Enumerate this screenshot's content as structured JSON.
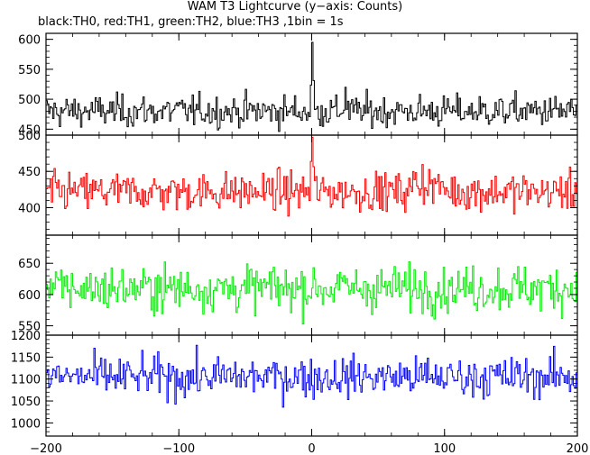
{
  "title": "WAM T3 Lightcurve (y−axis: Counts)",
  "subtitle": "black:TH0, red:TH1, green:TH2, blue:TH3 ,1bin = 1s",
  "chart_data": [
    {
      "type": "line",
      "series": [
        {
          "name": "TH0",
          "color": "#000000",
          "mean": 480,
          "sd": 22,
          "events": [
            {
              "x": 0,
              "add": 115
            },
            {
              "x": 25,
              "add": 40
            }
          ]
        }
      ],
      "xlim": [
        -200,
        200
      ],
      "ylim": [
        440,
        610
      ],
      "yticks": [
        450,
        500,
        550,
        600
      ]
    },
    {
      "type": "line",
      "series": [
        {
          "name": "TH1",
          "color": "#ff0000",
          "mean": 422,
          "sd": 22,
          "events": [
            {
              "x": 0,
              "add": 75
            }
          ],
          "step": {
            "from": 75,
            "add": 18
          }
        }
      ],
      "xlim": [
        -200,
        200
      ],
      "ylim": [
        362,
        500
      ],
      "yticks": [
        400,
        450,
        500
      ]
    },
    {
      "type": "line",
      "series": [
        {
          "name": "TH2",
          "color": "#00ee00",
          "mean": 610,
          "sd": 30
        }
      ],
      "xlim": [
        -200,
        200
      ],
      "ylim": [
        535,
        695
      ],
      "yticks": [
        550,
        600,
        650
      ]
    },
    {
      "type": "line",
      "series": [
        {
          "name": "TH3",
          "color": "#0000ff",
          "mean": 1105,
          "sd": 38
        }
      ],
      "xlim": [
        -200,
        200
      ],
      "ylim": [
        970,
        1200
      ],
      "yticks": [
        1000,
        1050,
        1100,
        1150,
        1200
      ],
      "xticks": [
        -200,
        -100,
        0,
        100,
        200
      ]
    }
  ]
}
